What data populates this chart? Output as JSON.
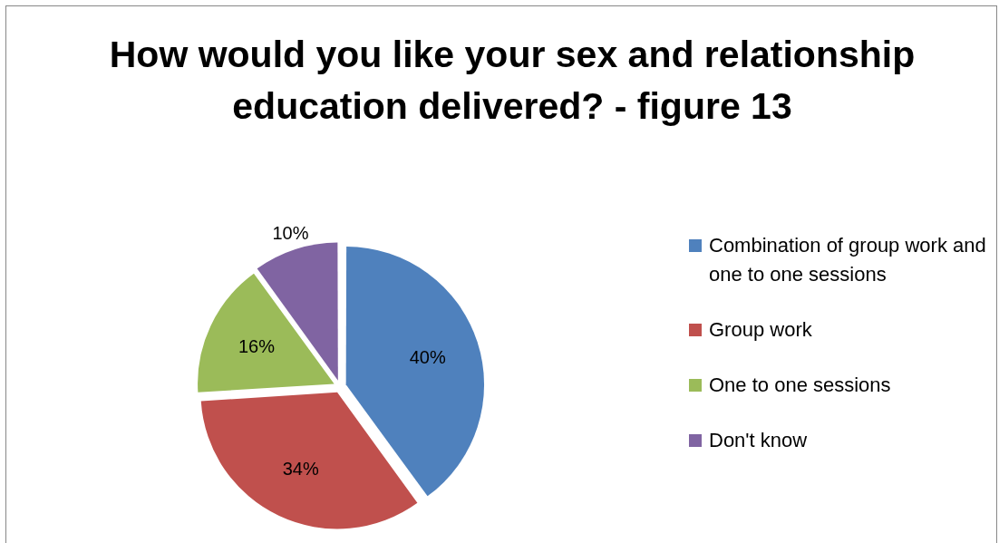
{
  "chart_data": {
    "type": "pie",
    "title": "How would you like your sex and relationship education delivered? - figure 13",
    "categories": [
      "Combination of group work and one to one sessions",
      "Group work",
      "One to one sessions",
      "Don't know"
    ],
    "values": [
      40,
      34,
      16,
      10
    ],
    "colors": [
      "#4f81bd",
      "#c0504d",
      "#9bbb59",
      "#8064a2"
    ],
    "value_labels": [
      "40%",
      "34%",
      "16%",
      "10%"
    ],
    "legend": "right"
  }
}
